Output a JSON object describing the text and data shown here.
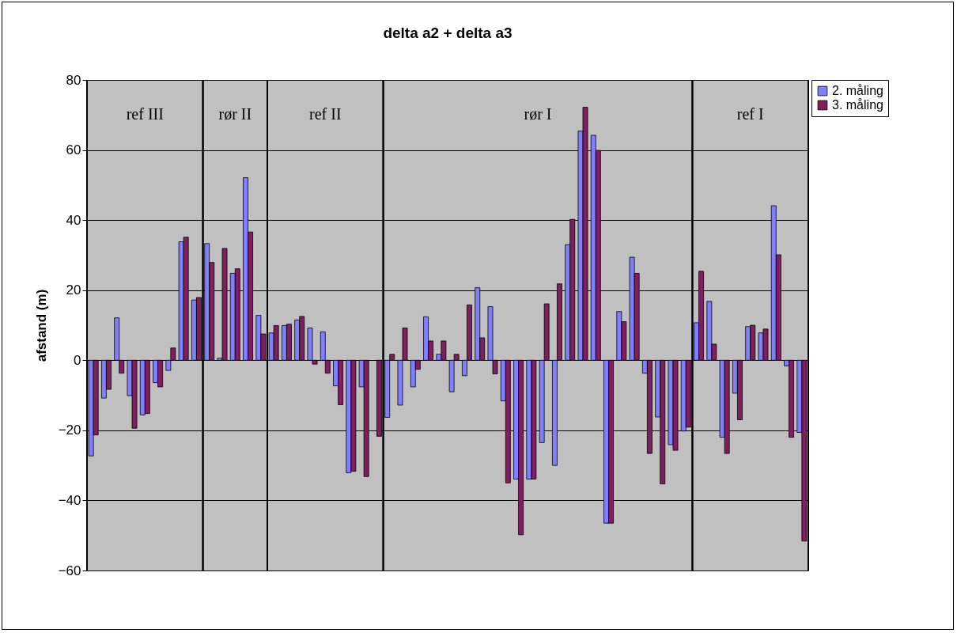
{
  "chart_data": {
    "type": "bar",
    "title": "delta a2 + delta a3",
    "ylabel": "afstand (m)",
    "categories": [
      null,
      null,
      null,
      null,
      null,
      null,
      null,
      null,
      null,
      null,
      null,
      null,
      null,
      null,
      null,
      null,
      null,
      null,
      null,
      null,
      null,
      null,
      null,
      null,
      null,
      null,
      null,
      null,
      null,
      null,
      null,
      null,
      null,
      null,
      null,
      null,
      null,
      null,
      null,
      null,
      null,
      null,
      null,
      null,
      null,
      null,
      null,
      null,
      null,
      null,
      null,
      null,
      null,
      null,
      null,
      null
    ],
    "ylim": [
      -60,
      80
    ],
    "yticks": [
      -60,
      -40,
      -20,
      0,
      20,
      40,
      60,
      80
    ],
    "tick_labels": "y",
    "grid": "y",
    "legend": "right",
    "series": [
      {
        "name": "2. måling",
        "color": "#8080ff",
        "values": [
          -27.3,
          -10.8,
          12.1,
          -10.1,
          -15.6,
          -6.4,
          -2.9,
          33.8,
          17.2,
          33.3,
          0.6,
          24.8,
          52.1,
          12.8,
          7.8,
          9.9,
          11.5,
          9.2,
          8.1,
          -7.3,
          -32.1,
          -7.6,
          null,
          -16.3,
          -12.8,
          -7.6,
          12.4,
          1.7,
          -9.0,
          -4.4,
          20.7,
          15.3,
          -11.6,
          -33.9,
          -33.9,
          -23.5,
          -30.0,
          33.0,
          65.4,
          64.2,
          -46.5,
          13.9,
          29.4,
          -3.7,
          -16.2,
          -24.1,
          -20.2,
          10.7,
          16.8,
          -22.0,
          -9.4,
          9.6,
          7.8,
          44.1,
          -1.6,
          -20.6
        ]
      },
      {
        "name": "3. måling",
        "color": "#7f1f5f",
        "values": [
          -21.3,
          -8.3,
          -3.7,
          -19.4,
          -15.2,
          -7.6,
          3.5,
          35.1,
          17.9,
          27.9,
          31.9,
          26.1,
          36.6,
          7.5,
          9.9,
          10.3,
          12.5,
          -1.1,
          -3.7,
          -12.7,
          -31.7,
          -33.2,
          -21.7,
          1.7,
          9.2,
          -2.6,
          5.5,
          5.5,
          1.7,
          15.8,
          6.4,
          -3.9,
          -35.0,
          -49.8,
          -33.9,
          16.1,
          21.8,
          40.2,
          72.2,
          59.9,
          -46.5,
          11.0,
          24.8,
          -26.6,
          -35.3,
          -25.7,
          -19.1,
          25.4,
          4.6,
          -26.6,
          -17.0,
          10.0,
          8.9,
          30.1,
          -22.0,
          -51.6
        ]
      }
    ],
    "annotations": [
      "ref III",
      "rør II",
      "ref II",
      "rør I",
      "ref I"
    ]
  }
}
